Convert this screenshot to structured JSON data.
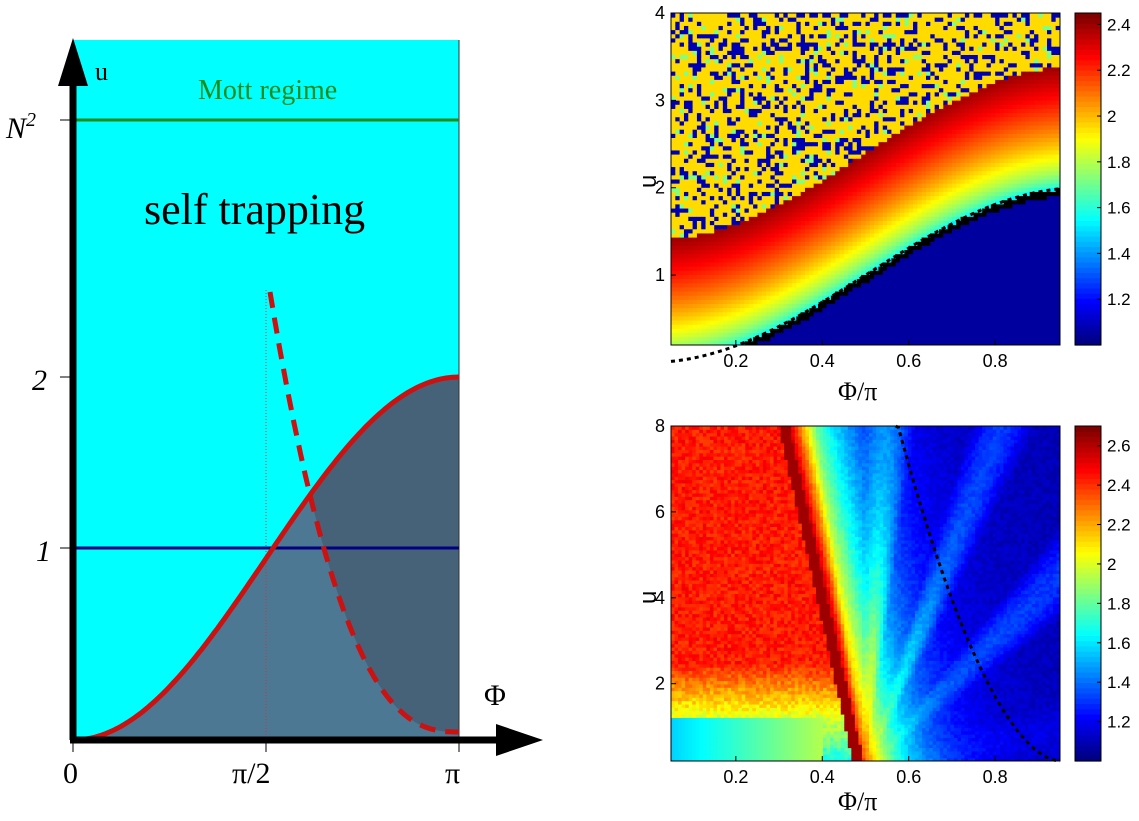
{
  "chart_data": [
    {
      "type": "area",
      "panel": "schematic phase diagram",
      "xlabel": "Φ",
      "ylabel": "u",
      "x_ticks": [
        "0",
        "π/2",
        "π"
      ],
      "y_ticks": [
        "1",
        "2",
        "N²"
      ],
      "labels": {
        "mott": "Mott regime",
        "self_trapping": "self trapping"
      },
      "curves": [
        {
          "kind": "boundary",
          "function": "u = 1 - cos(Φ)",
          "color": "#cc1111"
        },
        {
          "kind": "dashed",
          "function": "u ≈ cot-like divergence at Φ = π/2",
          "color": "#cc1111"
        }
      ],
      "horizontal_lines": [
        {
          "y_label": "1",
          "color": "#000080"
        },
        {
          "y_label": "N²",
          "color": "#1a8c1a"
        }
      ],
      "colors": {
        "background": "#00ffff",
        "filled_region": "#4a6e86",
        "darker_region": "#445f73"
      }
    },
    {
      "type": "heatmap",
      "panel": "top-right",
      "xlabel": "Φ/π",
      "ylabel": "u",
      "xlim": [
        0.05,
        0.95
      ],
      "ylim": [
        0.2,
        4
      ],
      "x_ticks": [
        "0.2",
        "0.4",
        "0.6",
        "0.8"
      ],
      "y_ticks": [
        "1",
        "2",
        "3",
        "4"
      ],
      "colorbar_ticks": [
        "1.2",
        "1.4",
        "1.6",
        "1.8",
        "2",
        "2.2",
        "2.4"
      ],
      "colorbar_range": [
        1.0,
        2.45
      ],
      "colormap": "jet",
      "dashed_curve": "u = 1 - cos(πΦ/π)"
    },
    {
      "type": "heatmap",
      "panel": "bottom-right",
      "xlabel": "Φ/π",
      "ylabel": "u",
      "xlim": [
        0.05,
        0.95
      ],
      "ylim": [
        0.2,
        8
      ],
      "x_ticks": [
        "0.2",
        "0.4",
        "0.6",
        "0.8"
      ],
      "y_ticks": [
        "2",
        "4",
        "6",
        "8"
      ],
      "colorbar_ticks": [
        "1.2",
        "1.4",
        "1.6",
        "1.8",
        "2",
        "2.2",
        "2.4",
        "2.6"
      ],
      "colorbar_range": [
        1.0,
        2.7
      ],
      "colormap": "jet",
      "dashed_curve": "u = -cos(Φ)/cos-like divergence near Φ/π = 0.57"
    }
  ]
}
